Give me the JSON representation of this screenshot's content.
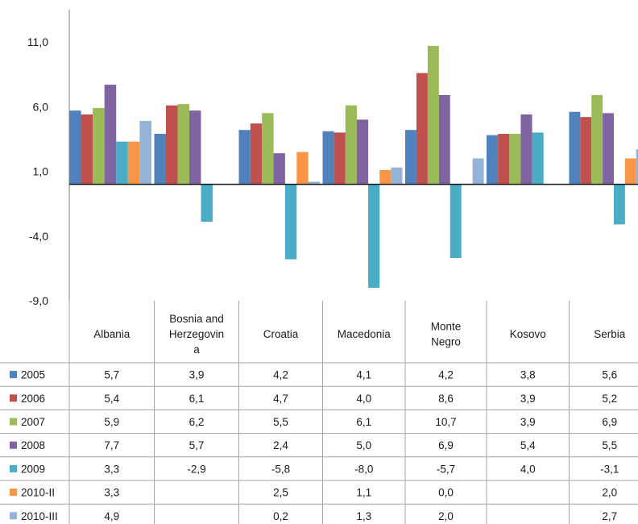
{
  "chart_data": {
    "type": "bar",
    "categories": [
      "Albania",
      "Bosnia and Herzegovina",
      "Croatia",
      "Macedonia",
      "Monte Negro",
      "Kosovo",
      "Serbia"
    ],
    "category_labels": [
      [
        "Albania"
      ],
      [
        "Bosnia and",
        "Herzegovin",
        "a"
      ],
      [
        "Croatia"
      ],
      [
        "Macedonia"
      ],
      [
        "Monte",
        "Negro"
      ],
      [
        "Kosovo"
      ],
      [
        "Serbia"
      ]
    ],
    "yticks": [
      "11,0",
      "6,0",
      "1,0",
      "-4,0",
      "-9,0"
    ],
    "ylim": [
      -9,
      13.5
    ],
    "grid": false,
    "legend": "data-table",
    "series": [
      {
        "name": "2005",
        "color": "#4f81bd",
        "values": [
          5.7,
          3.9,
          4.2,
          4.1,
          4.2,
          3.8,
          5.6
        ],
        "display": [
          "5,7",
          "3,9",
          "4,2",
          "4,1",
          "4,2",
          "3,8",
          "5,6"
        ]
      },
      {
        "name": "2006",
        "color": "#c0504d",
        "values": [
          5.4,
          6.1,
          4.7,
          4.0,
          8.6,
          3.9,
          5.2
        ],
        "display": [
          "5,4",
          "6,1",
          "4,7",
          "4,0",
          "8,6",
          "3,9",
          "5,2"
        ]
      },
      {
        "name": "2007",
        "color": "#9bbb59",
        "values": [
          5.9,
          6.2,
          5.5,
          6.1,
          10.7,
          3.9,
          6.9
        ],
        "display": [
          "5,9",
          "6,2",
          "5,5",
          "6,1",
          "10,7",
          "3,9",
          "6,9"
        ]
      },
      {
        "name": "2008",
        "color": "#8064a2",
        "values": [
          7.7,
          5.7,
          2.4,
          5.0,
          6.9,
          5.4,
          5.5
        ],
        "display": [
          "7,7",
          "5,7",
          "2,4",
          "5,0",
          "6,9",
          "5,4",
          "5,5"
        ]
      },
      {
        "name": "2009",
        "color": "#4bacc6",
        "values": [
          3.3,
          -2.9,
          -5.8,
          -8.0,
          -5.7,
          4.0,
          -3.1
        ],
        "display": [
          "3,3",
          "-2,9",
          "-5,8",
          "-8,0",
          "-5,7",
          "4,0",
          "-3,1"
        ]
      },
      {
        "name": "2010-II",
        "color": "#f79646",
        "values": [
          3.3,
          null,
          2.5,
          1.1,
          0.0,
          null,
          2.0
        ],
        "display": [
          "3,3",
          "",
          "2,5",
          "1,1",
          "0,0",
          "",
          "2,0"
        ]
      },
      {
        "name": "2010-III",
        "color": "#95b3d7",
        "values": [
          4.9,
          null,
          0.2,
          1.3,
          2.0,
          null,
          2.7
        ],
        "display": [
          "4,9",
          "",
          "0,2",
          "1,3",
          "2,0",
          "",
          "2,7"
        ]
      }
    ]
  }
}
